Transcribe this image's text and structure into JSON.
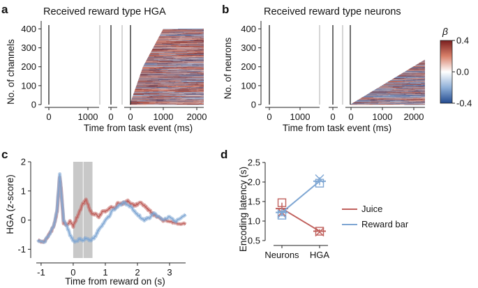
{
  "chart_data": [
    {
      "panel": "a",
      "type": "heatmap",
      "title": "Received reward type HGA",
      "ylabel": "No. of channels",
      "xlabel": "Time from task event (ms)",
      "yticks": [
        "0",
        "100",
        "200",
        "300",
        "400"
      ],
      "ylim": [
        0,
        420
      ],
      "xticks": [
        "0",
        "1000",
        "0",
        "0",
        "1000",
        "2000"
      ],
      "colormap": {
        "low": "#3b63a8",
        "mid": "#ffffff",
        "high": "#7a1e1e"
      },
      "n_rows": 400
    },
    {
      "panel": "b",
      "type": "heatmap",
      "title": "Received reward type neurons",
      "ylabel": "No. of neurons",
      "xlabel": "Time from task event (ms)",
      "yticks": [
        "0",
        "100",
        "200",
        "300",
        "400"
      ],
      "ylim": [
        0,
        420
      ],
      "xticks": [
        "0",
        "1000",
        "0",
        "0",
        "1000",
        "2000"
      ],
      "n_rows": 240,
      "colorbar": {
        "label": "β",
        "ticks": [
          "0.4",
          "0.0",
          "-0.4"
        ],
        "range": [
          -0.4,
          0.4
        ]
      }
    },
    {
      "panel": "c",
      "type": "line",
      "ylabel": "HGA (z-score)",
      "xlabel": "Time from reward on (s)",
      "xticks": [
        "-1",
        "0",
        "1",
        "2",
        "3"
      ],
      "yticks": [
        "-1",
        "0",
        "1",
        "2"
      ],
      "xlim": [
        -1.15,
        3.5
      ],
      "ylim": [
        -1.3,
        2.0
      ],
      "shaded_regions": [
        [
          0.0,
          0.3
        ],
        [
          0.32,
          0.6
        ]
      ],
      "series": [
        {
          "name": "Juice",
          "color": "#c0605c",
          "x": [
            -1.1,
            -0.9,
            -0.75,
            -0.6,
            -0.5,
            -0.42,
            -0.38,
            -0.3,
            -0.2,
            -0.1,
            0.0,
            0.1,
            0.2,
            0.3,
            0.4,
            0.5,
            0.6,
            0.7,
            0.8,
            0.9,
            1.0,
            1.1,
            1.2,
            1.3,
            1.4,
            1.5,
            1.6,
            1.7,
            1.8,
            1.9,
            2.0,
            2.1,
            2.2,
            2.3,
            2.4,
            2.5,
            2.6,
            2.8,
            3.0,
            3.2,
            3.5
          ],
          "y": [
            -0.7,
            -0.75,
            -0.5,
            -0.2,
            0.3,
            1.5,
            1.1,
            -0.1,
            -0.15,
            -0.05,
            -0.2,
            0.05,
            0.3,
            0.55,
            0.7,
            0.4,
            0.2,
            0.2,
            0.1,
            0.3,
            0.3,
            0.4,
            0.45,
            0.4,
            0.6,
            0.55,
            0.6,
            0.65,
            0.55,
            0.5,
            0.55,
            0.6,
            0.5,
            0.4,
            0.3,
            0.2,
            0.1,
            0.0,
            -0.05,
            -0.1,
            -0.15
          ]
        },
        {
          "name": "Reward bar",
          "color": "#7ea6d3",
          "x": [
            -1.1,
            -0.9,
            -0.75,
            -0.6,
            -0.5,
            -0.42,
            -0.38,
            -0.3,
            -0.2,
            -0.1,
            0.0,
            0.1,
            0.2,
            0.3,
            0.4,
            0.5,
            0.6,
            0.7,
            0.8,
            0.9,
            1.0,
            1.1,
            1.2,
            1.3,
            1.4,
            1.5,
            1.6,
            1.7,
            1.8,
            1.9,
            2.0,
            2.1,
            2.2,
            2.3,
            2.4,
            2.5,
            2.6,
            2.8,
            3.0,
            3.2,
            3.5
          ],
          "y": [
            -0.7,
            -0.75,
            -0.5,
            -0.2,
            0.35,
            1.6,
            1.0,
            0.0,
            -0.2,
            -0.5,
            -0.7,
            -0.75,
            -0.65,
            -0.7,
            -0.6,
            -0.7,
            -0.65,
            -0.55,
            -0.3,
            -0.2,
            0.0,
            0.1,
            0.3,
            0.4,
            0.5,
            0.55,
            0.6,
            0.5,
            0.45,
            0.3,
            0.2,
            0.1,
            0.0,
            0.05,
            0.1,
            0.25,
            0.15,
            0.0,
            0.1,
            -0.05,
            0.2
          ]
        }
      ]
    },
    {
      "panel": "d",
      "type": "line",
      "ylabel": "Encoding latency (s)",
      "categories": [
        "Neurons",
        "HGA"
      ],
      "yticks": [
        "0.5",
        "1.0",
        "1.5",
        "2.0",
        "2.5"
      ],
      "ylim": [
        0.5,
        2.5
      ],
      "series": [
        {
          "name": "Juice",
          "color": "#c0605c",
          "means": [
            1.32,
            0.74
          ],
          "squares": [
            1.47,
            0.74
          ],
          "crosses": [
            1.22,
            0.72
          ],
          "err": [
            0.15,
            0.05
          ]
        },
        {
          "name": "Reward bar",
          "color": "#7ea6d3",
          "means": [
            1.22,
            2.02
          ],
          "squares": [
            1.15,
            1.97
          ],
          "crosses": [
            1.18,
            2.08
          ],
          "err": [
            0.1,
            0.1
          ]
        }
      ]
    }
  ]
}
